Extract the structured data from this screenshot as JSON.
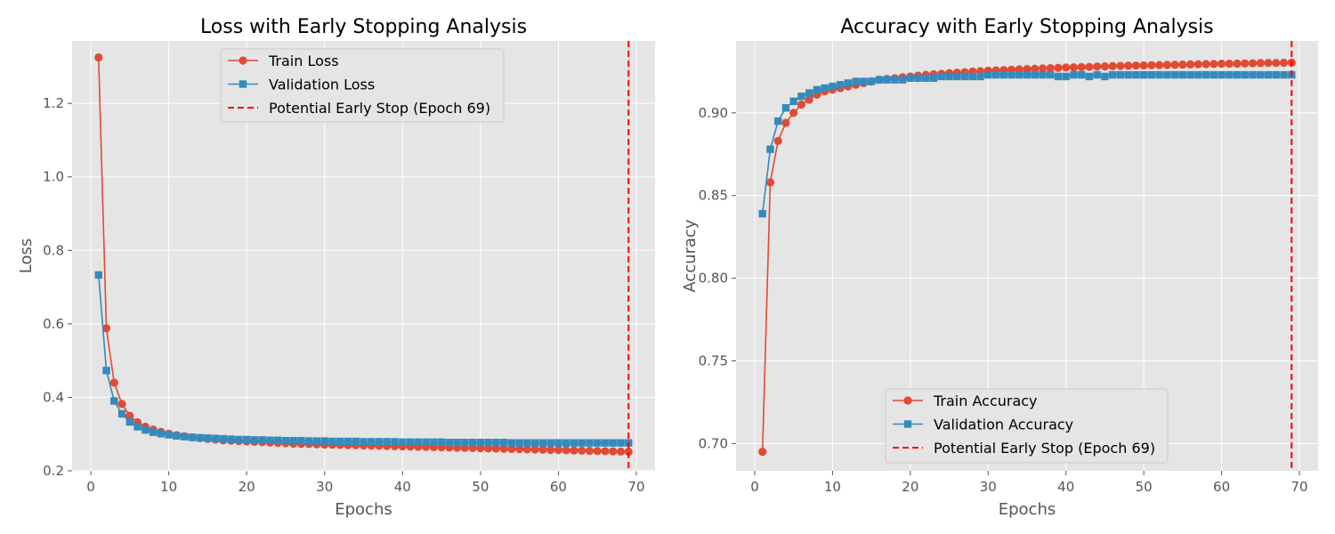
{
  "chart_data": [
    {
      "type": "line",
      "title": "Loss with Early Stopping Analysis",
      "xlabel": "Epochs",
      "ylabel": "Loss",
      "xlim": [
        -2.4,
        72.4
      ],
      "ylim": [
        0.2,
        1.37
      ],
      "xticks": [
        "0",
        "10",
        "20",
        "30",
        "40",
        "50",
        "60",
        "70"
      ],
      "yticks": [
        "0.2",
        "0.4",
        "0.6",
        "0.8",
        "1.0",
        "1.2"
      ],
      "grid": true,
      "legend_position": "top-center",
      "x": [
        1,
        2,
        3,
        4,
        5,
        6,
        7,
        8,
        9,
        10,
        11,
        12,
        13,
        14,
        15,
        16,
        17,
        18,
        19,
        20,
        21,
        22,
        23,
        24,
        25,
        26,
        27,
        28,
        29,
        30,
        31,
        32,
        33,
        34,
        35,
        36,
        37,
        38,
        39,
        40,
        41,
        42,
        43,
        44,
        45,
        46,
        47,
        48,
        49,
        50,
        51,
        52,
        53,
        54,
        55,
        56,
        57,
        58,
        59,
        60,
        61,
        62,
        63,
        64,
        65,
        66,
        67,
        68,
        69
      ],
      "series": [
        {
          "name": "Train Loss",
          "color": "#E24A33",
          "marker": "circle",
          "values": [
            1.325,
            0.588,
            0.44,
            0.382,
            0.35,
            0.332,
            0.32,
            0.312,
            0.306,
            0.301,
            0.297,
            0.294,
            0.291,
            0.289,
            0.287,
            0.285,
            0.283,
            0.282,
            0.281,
            0.28,
            0.279,
            0.278,
            0.277,
            0.276,
            0.275,
            0.274,
            0.2735,
            0.273,
            0.272,
            0.2715,
            0.271,
            0.2705,
            0.27,
            0.2695,
            0.269,
            0.2685,
            0.268,
            0.2675,
            0.267,
            0.2665,
            0.266,
            0.2655,
            0.265,
            0.2645,
            0.264,
            0.2635,
            0.263,
            0.2625,
            0.262,
            0.2615,
            0.261,
            0.2605,
            0.26,
            0.2595,
            0.259,
            0.2585,
            0.258,
            0.2575,
            0.257,
            0.2565,
            0.256,
            0.2555,
            0.255,
            0.2545,
            0.254,
            0.2535,
            0.253,
            0.2525,
            0.252
          ]
        },
        {
          "name": "Validation Loss",
          "color": "#348ABD",
          "marker": "square",
          "values": [
            0.733,
            0.473,
            0.39,
            0.355,
            0.333,
            0.32,
            0.311,
            0.305,
            0.301,
            0.298,
            0.295,
            0.293,
            0.291,
            0.29,
            0.289,
            0.288,
            0.287,
            0.286,
            0.285,
            0.285,
            0.284,
            0.284,
            0.283,
            0.283,
            0.282,
            0.282,
            0.282,
            0.281,
            0.281,
            0.281,
            0.28,
            0.28,
            0.28,
            0.28,
            0.279,
            0.279,
            0.279,
            0.279,
            0.279,
            0.278,
            0.278,
            0.278,
            0.278,
            0.278,
            0.278,
            0.277,
            0.277,
            0.277,
            0.277,
            0.277,
            0.277,
            0.277,
            0.277,
            0.276,
            0.276,
            0.276,
            0.276,
            0.276,
            0.276,
            0.276,
            0.276,
            0.276,
            0.276,
            0.276,
            0.276,
            0.276,
            0.276,
            0.276,
            0.276
          ]
        }
      ],
      "early_stop": {
        "label": "Potential Early Stop (Epoch 69)",
        "x": 69,
        "color": "#FF0000"
      }
    },
    {
      "type": "line",
      "title": "Accuracy with Early Stopping Analysis",
      "xlabel": "Epochs",
      "ylabel": "Accuracy",
      "xlim": [
        -2.4,
        72.4
      ],
      "ylim": [
        0.6835,
        0.9435
      ],
      "xticks": [
        "0",
        "10",
        "20",
        "30",
        "40",
        "50",
        "60",
        "70"
      ],
      "yticks": [
        "0.70",
        "0.75",
        "0.80",
        "0.85",
        "0.90"
      ],
      "grid": true,
      "legend_position": "bottom-center",
      "x": [
        1,
        2,
        3,
        4,
        5,
        6,
        7,
        8,
        9,
        10,
        11,
        12,
        13,
        14,
        15,
        16,
        17,
        18,
        19,
        20,
        21,
        22,
        23,
        24,
        25,
        26,
        27,
        28,
        29,
        30,
        31,
        32,
        33,
        34,
        35,
        36,
        37,
        38,
        39,
        40,
        41,
        42,
        43,
        44,
        45,
        46,
        47,
        48,
        49,
        50,
        51,
        52,
        53,
        54,
        55,
        56,
        57,
        58,
        59,
        60,
        61,
        62,
        63,
        64,
        65,
        66,
        67,
        68,
        69
      ],
      "series": [
        {
          "name": "Train Accuracy",
          "color": "#E24A33",
          "marker": "circle",
          "values": [
            0.695,
            0.858,
            0.883,
            0.894,
            0.9,
            0.905,
            0.908,
            0.911,
            0.913,
            0.914,
            0.915,
            0.916,
            0.917,
            0.918,
            0.919,
            0.92,
            0.9205,
            0.921,
            0.9215,
            0.922,
            0.9225,
            0.923,
            0.9233,
            0.9236,
            0.924,
            0.9243,
            0.9246,
            0.925,
            0.9252,
            0.9255,
            0.9257,
            0.9259,
            0.9261,
            0.9263,
            0.9265,
            0.9267,
            0.9269,
            0.927,
            0.9272,
            0.9274,
            0.9275,
            0.9277,
            0.9278,
            0.928,
            0.9281,
            0.9283,
            0.9284,
            0.9285,
            0.9286,
            0.9287,
            0.9288,
            0.9289,
            0.929,
            0.9291,
            0.9292,
            0.9293,
            0.9294,
            0.9295,
            0.9296,
            0.9297,
            0.9297,
            0.9298,
            0.9299,
            0.93,
            0.9301,
            0.9302,
            0.9302,
            0.9303,
            0.9304
          ]
        },
        {
          "name": "Validation Accuracy",
          "color": "#348ABD",
          "marker": "square",
          "values": [
            0.839,
            0.878,
            0.895,
            0.903,
            0.907,
            0.91,
            0.912,
            0.914,
            0.915,
            0.916,
            0.917,
            0.918,
            0.919,
            0.919,
            0.919,
            0.92,
            0.92,
            0.92,
            0.92,
            0.921,
            0.921,
            0.921,
            0.921,
            0.922,
            0.922,
            0.922,
            0.922,
            0.922,
            0.922,
            0.923,
            0.923,
            0.923,
            0.923,
            0.923,
            0.923,
            0.923,
            0.923,
            0.923,
            0.922,
            0.922,
            0.923,
            0.923,
            0.922,
            0.923,
            0.922,
            0.923,
            0.923,
            0.923,
            0.923,
            0.923,
            0.923,
            0.923,
            0.923,
            0.923,
            0.923,
            0.923,
            0.923,
            0.923,
            0.923,
            0.923,
            0.923,
            0.923,
            0.923,
            0.923,
            0.923,
            0.923,
            0.923,
            0.923,
            0.923
          ]
        }
      ],
      "early_stop": {
        "label": "Potential Early Stop (Epoch 69)",
        "x": 69,
        "color": "#FF0000"
      }
    }
  ]
}
